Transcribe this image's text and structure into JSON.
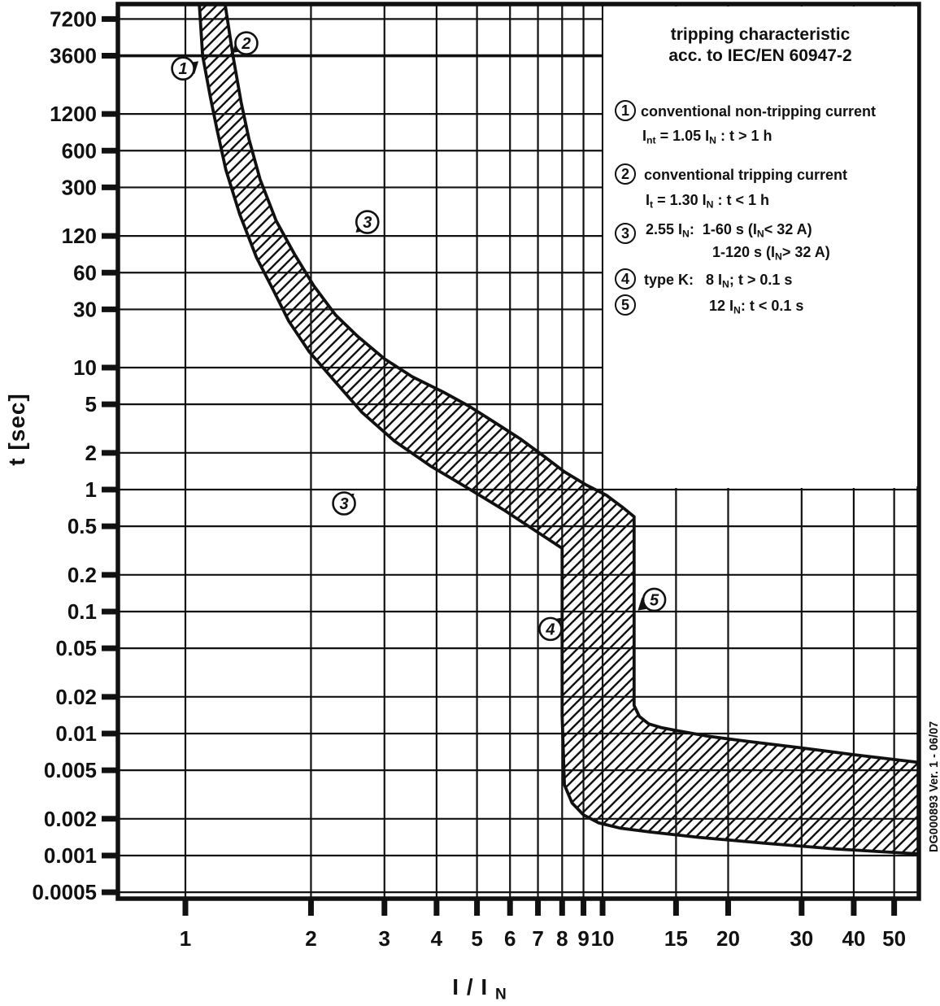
{
  "figure": {
    "doc_id_vertical": "DG000893 Ver. 1 - 06/07"
  },
  "axes": {
    "y_title_segs": [
      {
        "t": "t [sec]"
      }
    ],
    "x_title_segs": [
      {
        "t": "I / I "
      },
      {
        "t": "N",
        "s": 1
      }
    ]
  },
  "legend": {
    "title_line1": "tripping characteristic",
    "title_line2": "acc. to IEC/EN 60947-2",
    "item1": {
      "num": "1",
      "line1": [
        {
          "t": "conventional non-tripping current"
        }
      ],
      "line2": [
        {
          "t": "I"
        },
        {
          "t": "nt",
          "s": 1
        },
        {
          "t": " = 1.05 I"
        },
        {
          "t": "N",
          "s": 1
        },
        {
          "t": " : t > 1 h"
        }
      ]
    },
    "item2": {
      "num": "2",
      "line1": [
        {
          "t": "conventional tripping current"
        }
      ],
      "line2": [
        {
          "t": "I"
        },
        {
          "t": "t",
          "s": 1
        },
        {
          "t": " = 1.30 I"
        },
        {
          "t": "N",
          "s": 1
        },
        {
          "t": " : t < 1 h"
        }
      ]
    },
    "item3": {
      "num": "3",
      "line1": [
        {
          "t": "2.55 I"
        },
        {
          "t": "N",
          "s": 1
        },
        {
          "t": ":  1-60 s (I"
        },
        {
          "t": "N",
          "s": 1
        },
        {
          "t": "< 32 A)"
        }
      ],
      "line2": [
        {
          "t": "1-120 s (I"
        },
        {
          "t": "N",
          "s": 1
        },
        {
          "t": "> 32 A)"
        }
      ]
    },
    "item4": {
      "num": "4",
      "line1": [
        {
          "t": "type K:   8 I"
        },
        {
          "t": "N",
          "s": 1
        },
        {
          "t": "; t > 0.1 s"
        }
      ]
    },
    "item5": {
      "num": "5",
      "line1": [
        {
          "t": "12 I"
        },
        {
          "t": "N",
          "s": 1
        },
        {
          "t": ": t < 0.1 s"
        }
      ]
    }
  },
  "chart_data": {
    "type": "area",
    "title": "tripping characteristic acc. to IEC/EN 60947-2",
    "xlabel": "I / I_N",
    "ylabel": "t [sec]",
    "x_axis": {
      "scale": "log",
      "min": 0.689,
      "max": 57.3,
      "ticks": [
        1,
        2,
        3,
        4,
        5,
        6,
        7,
        8,
        9,
        10,
        15,
        20,
        30,
        40,
        50
      ]
    },
    "y_axis": {
      "scale": "log",
      "min": 0.000443,
      "max": 9550,
      "ticks": [
        7200,
        3600,
        1200,
        600,
        300,
        120,
        60,
        30,
        10,
        5,
        2,
        1,
        0.5,
        0.2,
        0.1,
        0.05,
        0.02,
        0.01,
        0.005,
        0.002,
        0.001,
        0.0005
      ],
      "emphasized_tick": 3600
    },
    "band": {
      "name": "tripping-band (hatched region between min and max tripping curves)",
      "min_curve": [
        [
          1.08,
          9550
        ],
        [
          1.1,
          3600
        ],
        [
          1.15,
          1600
        ],
        [
          1.19,
          900
        ],
        [
          1.25,
          420
        ],
        [
          1.35,
          180
        ],
        [
          1.48,
          80
        ],
        [
          1.62,
          44
        ],
        [
          1.77,
          24
        ],
        [
          1.98,
          13.5
        ],
        [
          2.26,
          8
        ],
        [
          2.65,
          4.3
        ],
        [
          3.17,
          2.5
        ],
        [
          3.88,
          1.55
        ],
        [
          4.75,
          1.03
        ],
        [
          5.8,
          0.68
        ],
        [
          6.9,
          0.46
        ],
        [
          8.0,
          0.33
        ],
        [
          8.0,
          0.014
        ],
        [
          8.1,
          0.0038
        ],
        [
          8.45,
          0.0027
        ],
        [
          9.0,
          0.00215
        ],
        [
          9.8,
          0.00185
        ],
        [
          11.0,
          0.00168
        ],
        [
          13.0,
          0.00156
        ],
        [
          17.0,
          0.00141
        ],
        [
          24.5,
          0.00126
        ],
        [
          36.5,
          0.00113
        ],
        [
          57.3,
          0.00103
        ]
      ],
      "max_curve": [
        [
          1.245,
          9550
        ],
        [
          1.3,
          3600
        ],
        [
          1.36,
          1500
        ],
        [
          1.42,
          750
        ],
        [
          1.51,
          350
        ],
        [
          1.65,
          160
        ],
        [
          1.83,
          84
        ],
        [
          2.03,
          47
        ],
        [
          2.29,
          27
        ],
        [
          2.59,
          18
        ],
        [
          3.0,
          11.8
        ],
        [
          3.5,
          8.4
        ],
        [
          4.15,
          6.3
        ],
        [
          4.8,
          4.8
        ],
        [
          5.55,
          3.5
        ],
        [
          6.35,
          2.6
        ],
        [
          7.2,
          1.9
        ],
        [
          8.1,
          1.4
        ],
        [
          9.1,
          1.1
        ],
        [
          10.2,
          0.9
        ],
        [
          11.2,
          0.71
        ],
        [
          11.9,
          0.6
        ],
        [
          11.9,
          0.017
        ],
        [
          12.25,
          0.0138
        ],
        [
          12.9,
          0.012
        ],
        [
          13.8,
          0.0112
        ],
        [
          15.2,
          0.0105
        ],
        [
          17.9,
          0.0095
        ],
        [
          22.4,
          0.0086
        ],
        [
          29.3,
          0.0077
        ],
        [
          40.2,
          0.0067
        ],
        [
          57.3,
          0.0058
        ]
      ]
    },
    "annotations": [
      {
        "label": "1",
        "at": [
          0.987,
          2830
        ],
        "arrow_at": [
          1.075,
          3250
        ],
        "dir": "ne"
      },
      {
        "label": "2",
        "at": [
          1.4,
          4560
        ],
        "arrow_at": [
          1.295,
          3800
        ],
        "dir": "sw"
      },
      {
        "label": "3",
        "at": [
          2.73,
          156
        ],
        "arrow_at": [
          2.56,
          128
        ],
        "dir": "sw"
      },
      {
        "label": "3",
        "at": [
          2.4,
          0.77
        ],
        "arrow_at": [
          2.54,
          0.93
        ],
        "dir": "ne"
      },
      {
        "label": "4",
        "at": [
          7.5,
          0.072
        ],
        "arrow_at": [
          7.98,
          0.089
        ],
        "dir": "ne"
      },
      {
        "label": "5",
        "at": [
          13.3,
          0.125
        ],
        "arrow_at": [
          12.15,
          0.102
        ],
        "dir": "sw"
      }
    ],
    "colors": {
      "ink": "#111111",
      "background": "#ffffff"
    }
  }
}
